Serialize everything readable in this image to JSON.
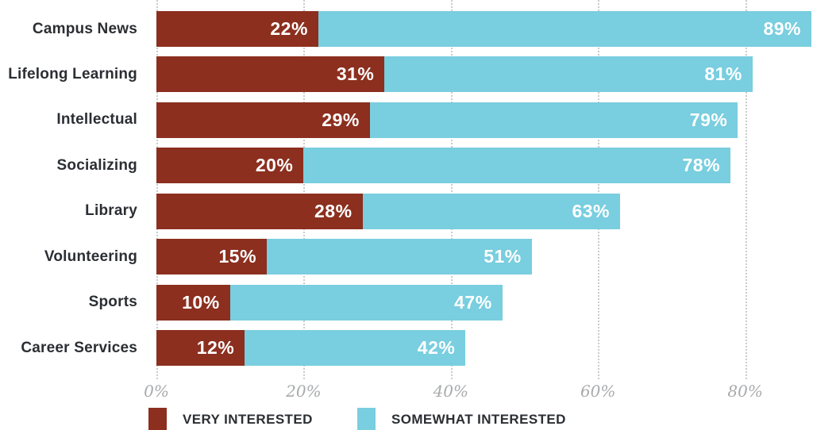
{
  "chart_data": {
    "type": "bar",
    "orientation": "horizontal",
    "stacked": true,
    "title": "",
    "xlabel": "",
    "ylabel": "",
    "categories": [
      "Campus News",
      "Lifelong Learning",
      "Intellectual",
      "Socializing",
      "Library",
      "Volunteering",
      "Sports",
      "Career Services"
    ],
    "series": [
      {
        "name": "VERY INTERESTED",
        "color": "#8c2f1f",
        "values": [
          22,
          31,
          29,
          20,
          28,
          15,
          10,
          12
        ]
      },
      {
        "name": "SOMEWHAT INTERESTED",
        "color": "#79cedf",
        "values": [
          89,
          81,
          79,
          78,
          63,
          51,
          47,
          42
        ]
      }
    ],
    "somewhat_values_are_bar_totals": true,
    "value_label_suffix": "%",
    "x_ticks": [
      "0%",
      "20%",
      "40%",
      "60%",
      "80%"
    ],
    "x_tick_values": [
      0,
      20,
      40,
      60,
      80
    ],
    "xlim": [
      0,
      89
    ],
    "grid": "vertical-dotted",
    "legend_position": "bottom"
  },
  "legend": {
    "items": [
      {
        "label": "VERY INTERESTED",
        "color": "#8c2f1f"
      },
      {
        "label": "SOMEWHAT INTERESTED",
        "color": "#79cedf"
      }
    ]
  },
  "colors": {
    "very_interested": "#8c2f1f",
    "somewhat_interested": "#79cedf",
    "category_text": "#2b2e33",
    "axis_text": "#a8aaac",
    "gridline": "#c9cbcd",
    "background": "#ffffff"
  }
}
